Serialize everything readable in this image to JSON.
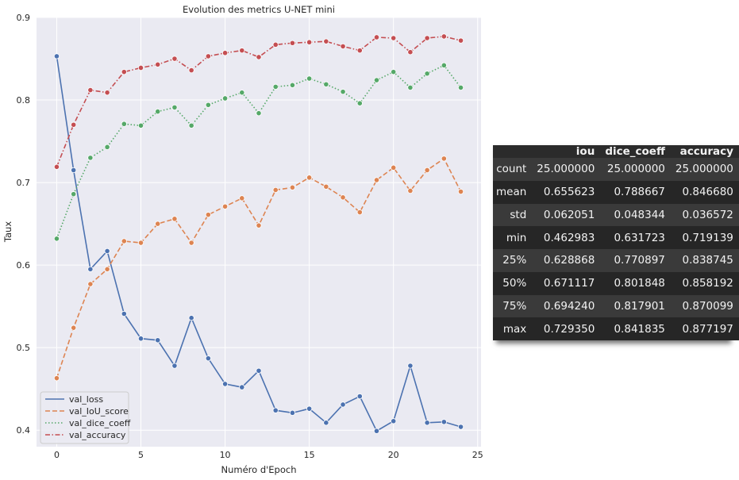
{
  "chart_data": {
    "type": "line",
    "title": "Evolution des metrics U-NET mini",
    "xlabel": "Numéro d'Epoch",
    "ylabel": "Taux",
    "xlim": [
      -1.2,
      25.2
    ],
    "ylim": [
      0.38,
      0.9
    ],
    "xticks": [
      0,
      5,
      10,
      15,
      20,
      25
    ],
    "yticks": [
      0.4,
      0.5,
      0.6,
      0.7,
      0.8,
      0.9
    ],
    "grid": true,
    "legend_position": "lower-left",
    "x": [
      0,
      1,
      2,
      3,
      4,
      5,
      6,
      7,
      8,
      9,
      10,
      11,
      12,
      13,
      14,
      15,
      16,
      17,
      18,
      19,
      20,
      21,
      22,
      23,
      24
    ],
    "series": [
      {
        "name": "val_loss",
        "color": "#4c72b0",
        "dash": "solid",
        "values": [
          0.853,
          0.715,
          0.595,
          0.617,
          0.541,
          0.511,
          0.509,
          0.478,
          0.536,
          0.487,
          0.456,
          0.452,
          0.472,
          0.424,
          0.421,
          0.426,
          0.409,
          0.431,
          0.441,
          0.399,
          0.411,
          0.478,
          0.409,
          0.41,
          0.404
        ]
      },
      {
        "name": "val_IoU_score",
        "color": "#dd8452",
        "dash": "dashed",
        "values": [
          0.463,
          0.524,
          0.577,
          0.595,
          0.629,
          0.627,
          0.65,
          0.656,
          0.627,
          0.661,
          0.671,
          0.681,
          0.648,
          0.691,
          0.694,
          0.706,
          0.695,
          0.682,
          0.664,
          0.703,
          0.718,
          0.69,
          0.715,
          0.729,
          0.689
        ]
      },
      {
        "name": "val_dice_coeff",
        "color": "#55a868",
        "dash": "dotted",
        "values": [
          0.632,
          0.686,
          0.73,
          0.743,
          0.771,
          0.769,
          0.786,
          0.791,
          0.769,
          0.794,
          0.802,
          0.809,
          0.784,
          0.816,
          0.818,
          0.826,
          0.819,
          0.81,
          0.796,
          0.824,
          0.834,
          0.815,
          0.832,
          0.842,
          0.815
        ]
      },
      {
        "name": "val_accuracy",
        "color": "#c44e52",
        "dash": "dashdot",
        "values": [
          0.719,
          0.77,
          0.812,
          0.809,
          0.834,
          0.839,
          0.843,
          0.85,
          0.836,
          0.853,
          0.857,
          0.86,
          0.852,
          0.867,
          0.869,
          0.87,
          0.871,
          0.865,
          0.86,
          0.876,
          0.875,
          0.858,
          0.875,
          0.877,
          0.872
        ]
      }
    ]
  },
  "stats_table": {
    "columns": [
      "",
      "iou",
      "dice_coeff",
      "accuracy"
    ],
    "rows": [
      [
        "count",
        "25.000000",
        "25.000000",
        "25.000000"
      ],
      [
        "mean",
        "0.655623",
        "0.788667",
        "0.846680"
      ],
      [
        "std",
        "0.062051",
        "0.048344",
        "0.036572"
      ],
      [
        "min",
        "0.462983",
        "0.631723",
        "0.719139"
      ],
      [
        "25%",
        "0.628868",
        "0.770897",
        "0.838745"
      ],
      [
        "50%",
        "0.671117",
        "0.801848",
        "0.858192"
      ],
      [
        "75%",
        "0.694240",
        "0.817901",
        "0.870099"
      ],
      [
        "max",
        "0.729350",
        "0.841835",
        "0.877197"
      ]
    ]
  },
  "colors": {
    "plot_background": "#eaeaf2",
    "grid": "#ffffff",
    "table_background": "#262626"
  }
}
